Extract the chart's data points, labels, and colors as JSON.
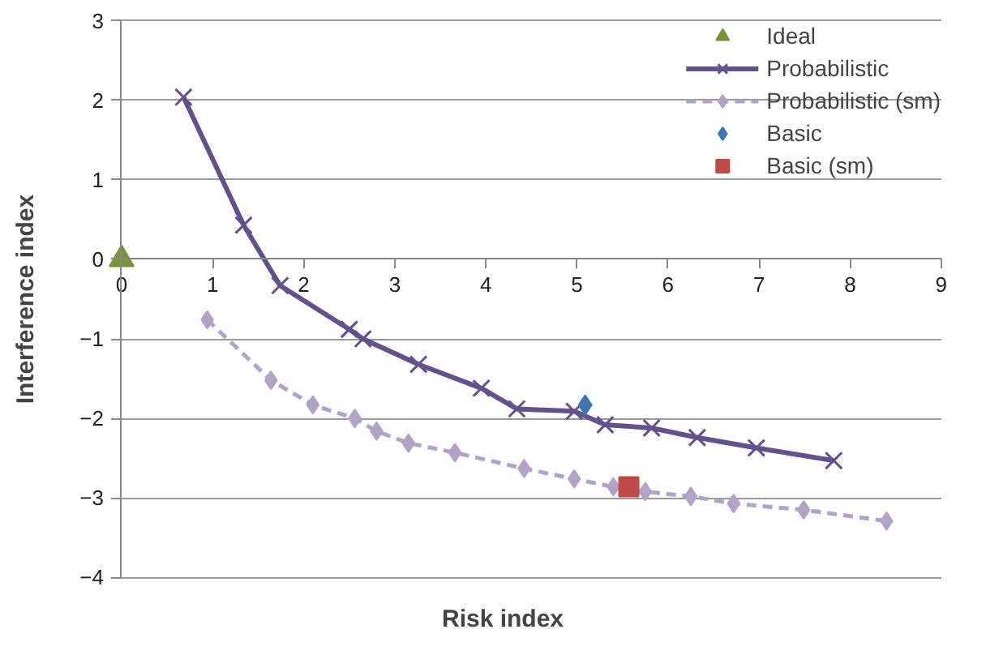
{
  "chart_data": {
    "type": "line",
    "xlabel": "Risk index",
    "ylabel": "Interference index",
    "xlim": [
      0,
      9
    ],
    "ylim": [
      -4,
      3
    ],
    "xticks": [
      0,
      1,
      2,
      3,
      4,
      5,
      6,
      7,
      8,
      9
    ],
    "yticks": [
      -4,
      -3,
      -2,
      -1,
      0,
      1,
      2,
      3
    ],
    "grid": "y",
    "legend": "top right",
    "series": [
      {
        "name": "Ideal",
        "type": "scatter",
        "marker": "triangle",
        "color": "#77933c",
        "x": [
          0
        ],
        "values": [
          0
        ]
      },
      {
        "name": "Probabilistic",
        "marker": "cross",
        "line_style": "solid",
        "color": "#65508f",
        "x": [
          0.68,
          1.34,
          1.74,
          2.5,
          2.65,
          3.26,
          3.95,
          4.34,
          4.97,
          5.31,
          5.82,
          6.32,
          6.97,
          7.82
        ],
        "values": [
          2.04,
          0.43,
          -0.33,
          -0.88,
          -1.0,
          -1.32,
          -1.62,
          -1.88,
          -1.91,
          -2.08,
          -2.12,
          -2.24,
          -2.37,
          -2.53
        ]
      },
      {
        "name": "Probabilistic (sm)",
        "marker": "diamond",
        "line_style": "dashed",
        "color": "#b3a2c7",
        "x": [
          0.94,
          1.64,
          2.1,
          2.56,
          2.8,
          3.15,
          3.66,
          4.42,
          4.97,
          5.4,
          5.75,
          6.25,
          6.72,
          7.49,
          8.4
        ],
        "values": [
          -0.76,
          -1.52,
          -1.83,
          -2.0,
          -2.16,
          -2.31,
          -2.43,
          -2.63,
          -2.76,
          -2.86,
          -2.92,
          -2.98,
          -3.07,
          -3.15,
          -3.29
        ]
      },
      {
        "name": "Basic",
        "type": "scatter",
        "marker": "diamond",
        "color": "#3b76b5",
        "x": [
          5.09
        ],
        "values": [
          -1.83
        ]
      },
      {
        "name": "Basic (sm)",
        "type": "scatter",
        "marker": "square",
        "color": "#be4b48",
        "x": [
          5.57
        ],
        "values": [
          -2.86
        ]
      }
    ]
  }
}
